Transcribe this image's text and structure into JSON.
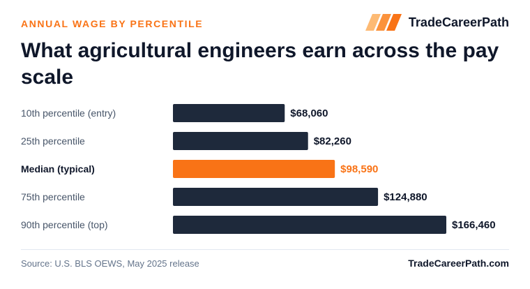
{
  "header": {
    "eyebrow": "ANNUAL WAGE BY PERCENTILE",
    "title": "What agricultural engineers earn across the pay scale",
    "brand_name": "TradeCareerPath",
    "brand_icon": "stripes-logo-icon"
  },
  "colors": {
    "accent": "#f97316",
    "bar": "#1e293b",
    "text": "#0f172a",
    "muted": "#475569"
  },
  "chart_data": {
    "type": "bar",
    "orientation": "horizontal",
    "categories": [
      "10th percentile (entry)",
      "25th percentile",
      "Median (typical)",
      "75th percentile",
      "90th percentile (top)"
    ],
    "values": [
      68060,
      82260,
      98590,
      124880,
      166460
    ],
    "value_labels": [
      "$68,060",
      "$82,260",
      "$98,590",
      "$124,880",
      "$166,460"
    ],
    "highlight_index": 2,
    "title": "What agricultural engineers earn across the pay scale",
    "xlabel": "",
    "ylabel": "",
    "grid": false,
    "legend": "none"
  },
  "footer": {
    "source": "Source: U.S. BLS OEWS, May 2025 release",
    "site": "TradeCareerPath.com"
  }
}
